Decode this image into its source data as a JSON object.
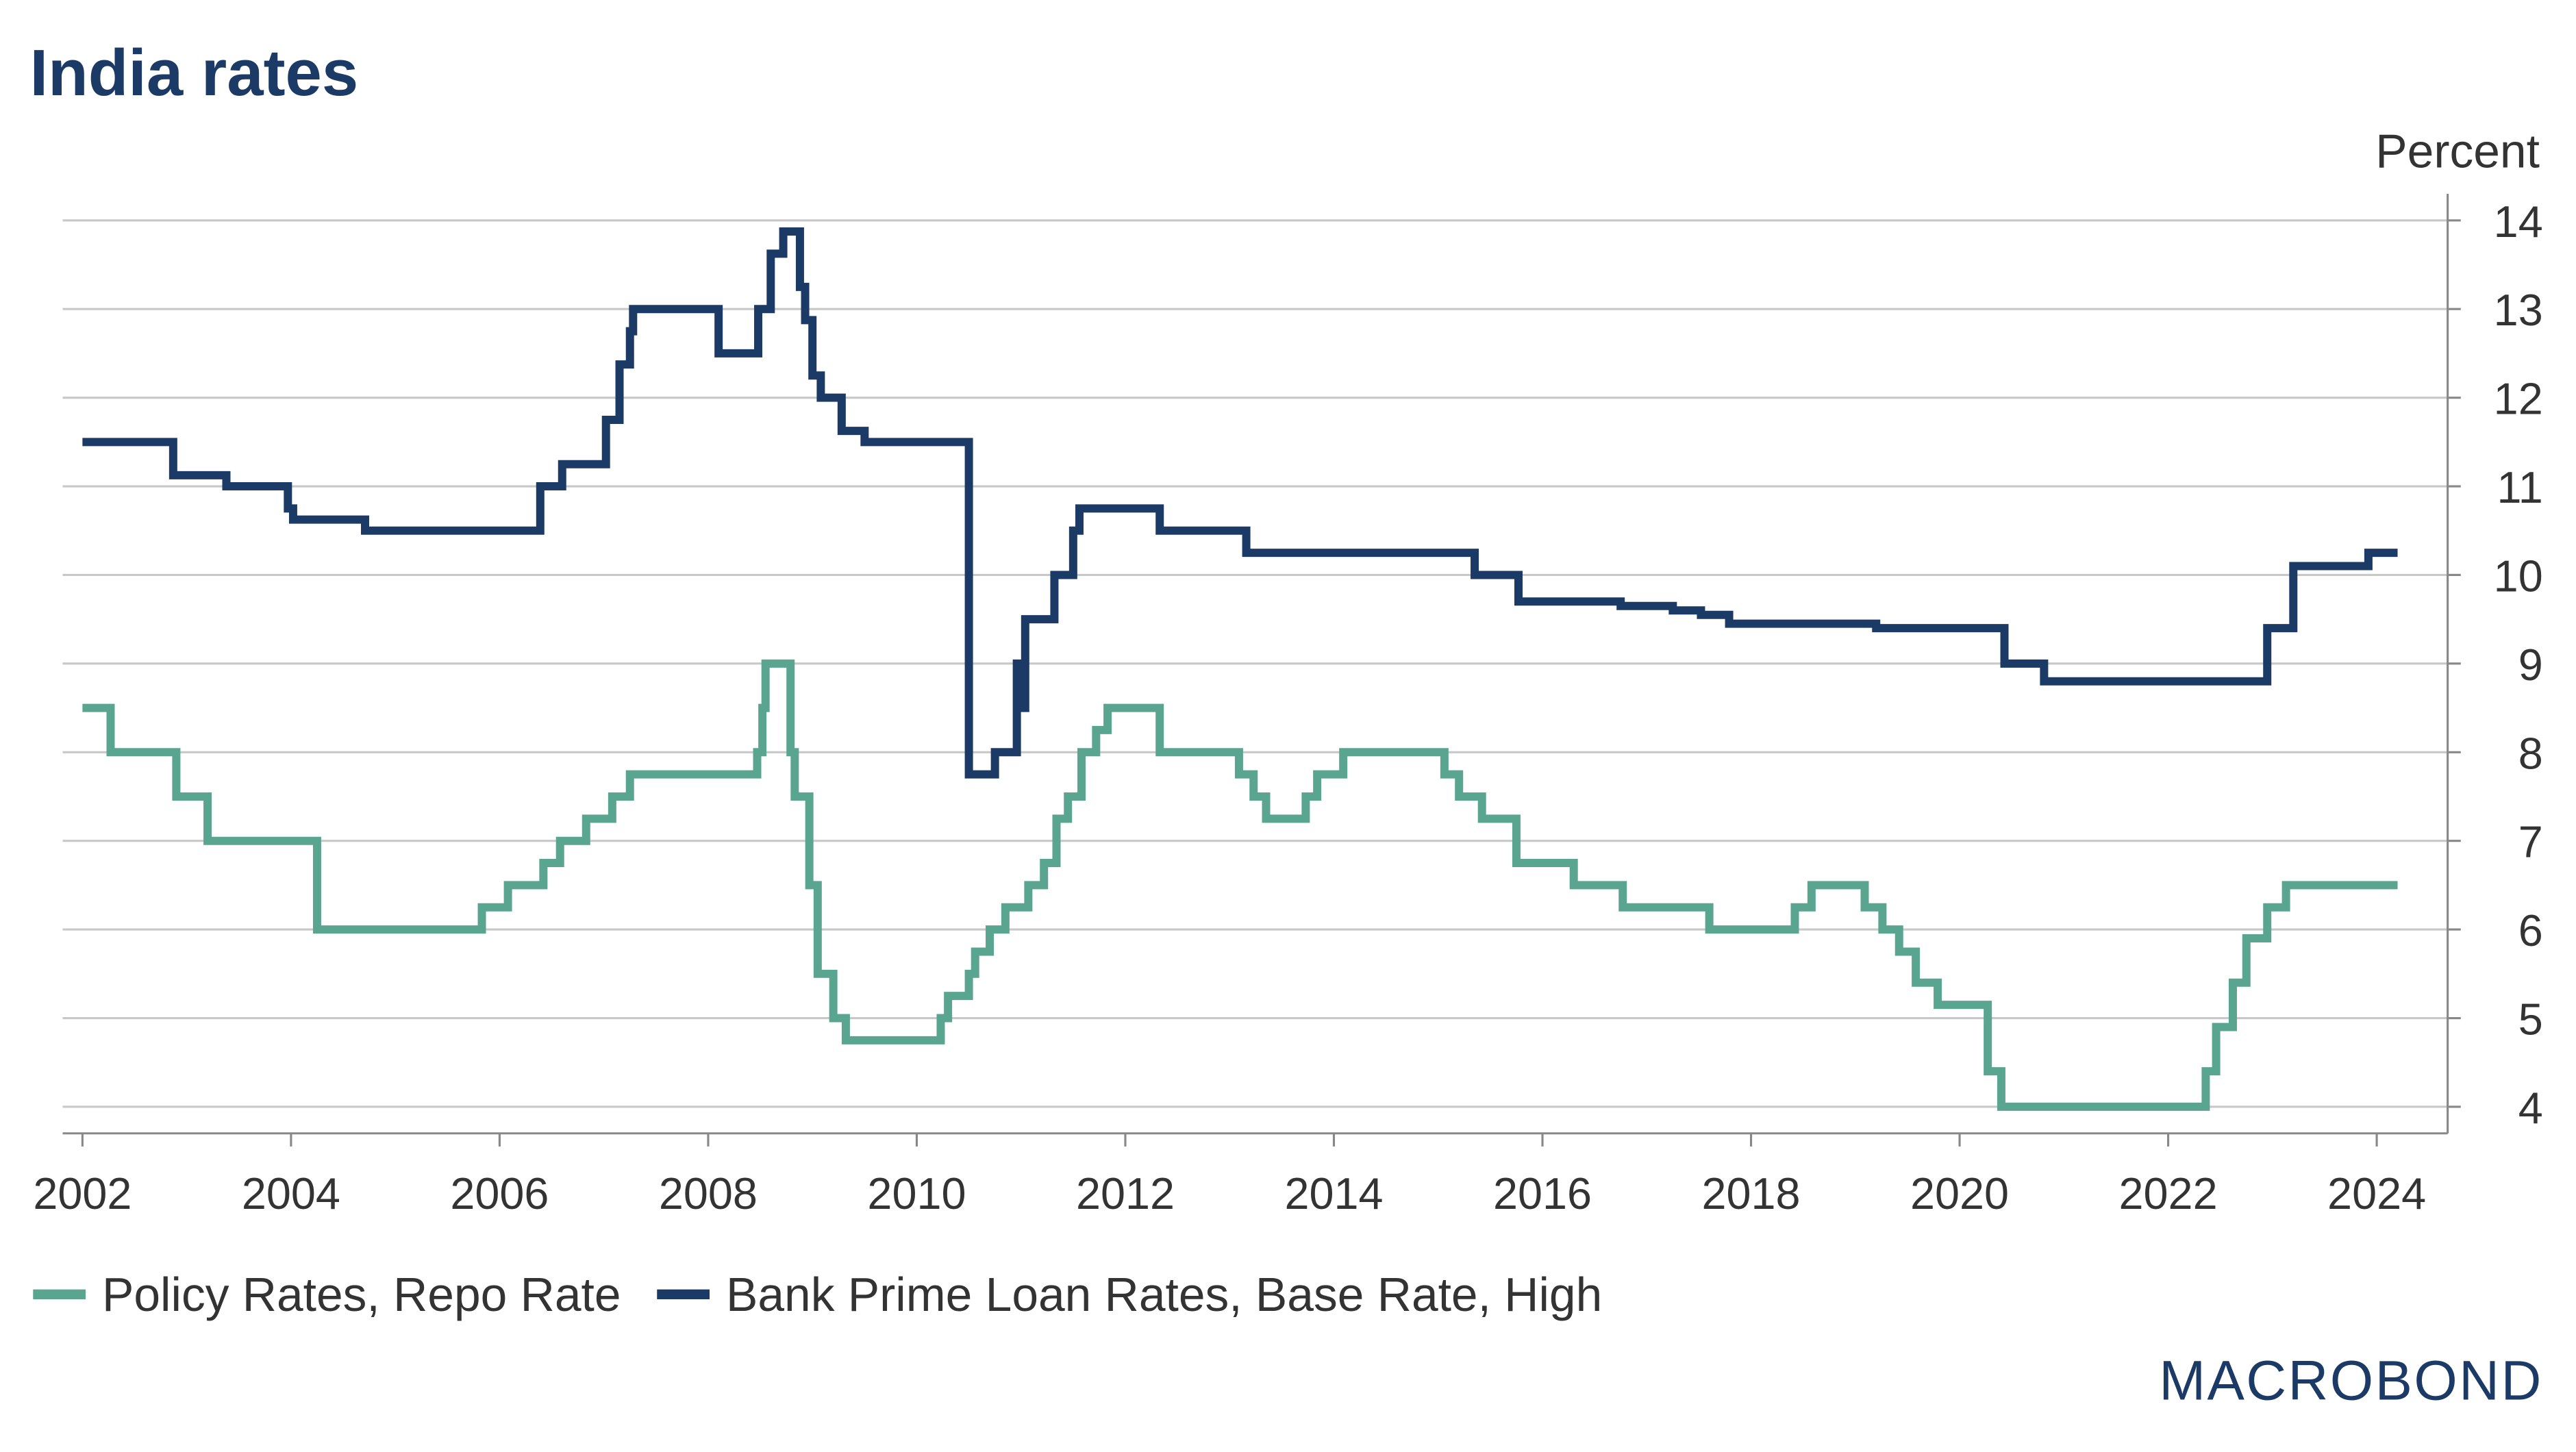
{
  "chart_data": {
    "type": "line",
    "step": "post",
    "title": "India rates",
    "y_label": "Percent",
    "brand": "MACROBOND",
    "xlim": [
      2001.81,
      2024.68
    ],
    "xticks": [
      2002,
      2004,
      2006,
      2008,
      2010,
      2012,
      2014,
      2016,
      2018,
      2020,
      2022,
      2024
    ],
    "ylim": [
      3.7,
      14.3
    ],
    "yticks": [
      4,
      5,
      6,
      7,
      8,
      9,
      10,
      11,
      12,
      13,
      14
    ],
    "grid": true,
    "y_axis_side": "right",
    "legend": "bottom",
    "series": [
      {
        "name": "Policy Rates, Repo Rate",
        "color": "#5aa58f",
        "x": [
          2002.0,
          2002.27,
          2002.9,
          2003.2,
          2004.25,
          2005.83,
          2006.08,
          2006.42,
          2006.58,
          2006.83,
          2007.08,
          2007.25,
          2008.47,
          2008.52,
          2008.55,
          2008.79,
          2008.83,
          2008.97,
          2009.05,
          2009.2,
          2009.32,
          2010.23,
          2010.3,
          2010.5,
          2010.56,
          2010.7,
          2010.85,
          2011.07,
          2011.22,
          2011.34,
          2011.45,
          2011.58,
          2011.72,
          2011.83,
          2012.33,
          2013.09,
          2013.23,
          2013.35,
          2013.73,
          2013.84,
          2014.09,
          2015.06,
          2015.2,
          2015.42,
          2015.75,
          2016.3,
          2016.77,
          2017.6,
          2018.42,
          2018.58,
          2019.09,
          2019.26,
          2019.42,
          2019.58,
          2019.79,
          2020.27,
          2020.4,
          2022.36,
          2022.46,
          2022.62,
          2022.75,
          2022.95,
          2023.13,
          2024.2
        ],
        "values": [
          8.5,
          8.0,
          7.5,
          7.0,
          6.0,
          6.25,
          6.5,
          6.75,
          7.0,
          7.25,
          7.5,
          7.75,
          8.0,
          8.5,
          9.0,
          8.0,
          7.5,
          6.5,
          5.5,
          5.0,
          4.75,
          5.0,
          5.25,
          5.5,
          5.75,
          6.0,
          6.25,
          6.5,
          6.75,
          7.25,
          7.5,
          8.0,
          8.25,
          8.5,
          8.0,
          7.75,
          7.5,
          7.25,
          7.5,
          7.75,
          8.0,
          7.75,
          7.5,
          7.25,
          6.75,
          6.5,
          6.25,
          6.0,
          6.25,
          6.5,
          6.25,
          6.0,
          5.75,
          5.4,
          5.15,
          4.4,
          4.0,
          4.4,
          4.9,
          5.4,
          5.9,
          6.25,
          6.5,
          6.5
        ]
      },
      {
        "name": "Bank Prime Loan Rates, Base Rate, High",
        "color": "#1b3a66",
        "x": [
          2002.0,
          2002.87,
          2003.38,
          2003.97,
          2004.02,
          2004.71,
          2006.39,
          2006.6,
          2007.02,
          2007.15,
          2007.25,
          2007.28,
          2008.1,
          2008.48,
          2008.6,
          2008.72,
          2008.88,
          2008.93,
          2009.0,
          2009.08,
          2009.28,
          2009.5,
          2010.5,
          2010.75,
          2010.96,
          2011.0,
          2011.04,
          2011.32,
          2011.5,
          2011.56,
          2012.33,
          2013.16,
          2015.35,
          2015.77,
          2016.75,
          2017.25,
          2017.52,
          2017.79,
          2019.2,
          2020.43,
          2020.81,
          2022.95,
          2023.2,
          2023.92,
          2024.2
        ],
        "values": [
          11.5,
          11.125,
          11.0,
          10.75,
          10.625,
          10.5,
          11.0,
          11.25,
          11.75,
          12.375,
          12.75,
          13.0,
          12.5,
          13.0,
          13.625,
          13.875,
          13.25,
          12.875,
          12.25,
          12.0,
          11.625,
          11.5,
          7.75,
          8.0,
          9.0,
          8.5,
          9.5,
          10.0,
          10.5,
          10.75,
          10.5,
          10.25,
          10.0,
          9.7,
          9.65,
          9.6,
          9.55,
          9.45,
          9.4,
          9.0,
          8.8,
          9.4,
          10.1,
          10.25,
          10.25
        ]
      }
    ]
  }
}
